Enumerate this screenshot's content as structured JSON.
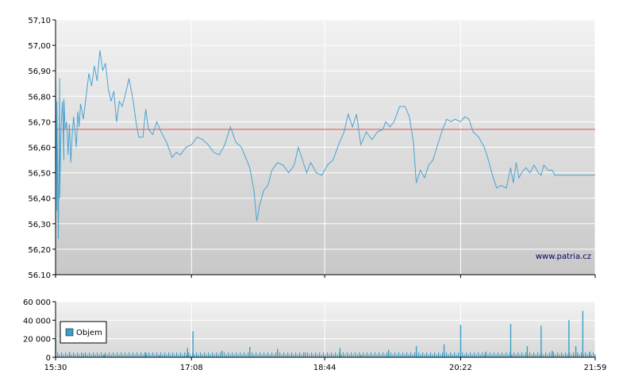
{
  "chart_data": [
    {
      "type": "line",
      "title": "",
      "xlabel": "",
      "ylabel": "",
      "ylim": [
        56.1,
        57.1
      ],
      "y_ticks": [
        "56.10",
        "56,20",
        "56,30",
        "56,40",
        "56,50",
        "56,60",
        "56,70",
        "56,80",
        "56,90",
        "57,00",
        "57,10"
      ],
      "x_ticks": [
        "15:30",
        "17:08",
        "18:44",
        "20:22",
        "21:59"
      ],
      "reference_line": 56.67,
      "watermark": "www.patria.cz",
      "colors": {
        "line": "#4aa3d1",
        "reference": "#e05050",
        "plot_top": "#f2f2f2",
        "plot_bottom": "#c8c8c8",
        "grid": "#ffffff"
      },
      "series": [
        {
          "points": [
            [
              "15:30",
              56.62
            ],
            [
              "15:30",
              56.88
            ],
            [
              "15:31",
              56.35
            ],
            [
              "15:31",
              56.78
            ],
            [
              "15:32",
              56.24
            ],
            [
              "15:33",
              56.87
            ],
            [
              "15:33",
              56.4
            ],
            [
              "15:34",
              56.68
            ],
            [
              "15:35",
              56.78
            ],
            [
              "15:36",
              56.55
            ],
            [
              "15:36",
              56.79
            ],
            [
              "15:37",
              56.67
            ],
            [
              "15:38",
              56.7
            ],
            [
              "15:39",
              56.57
            ],
            [
              "15:40",
              56.69
            ],
            [
              "15:41",
              56.54
            ],
            [
              "15:42",
              56.65
            ],
            [
              "15:43",
              56.72
            ],
            [
              "15:45",
              56.6
            ],
            [
              "15:46",
              56.74
            ],
            [
              "15:47",
              56.68
            ],
            [
              "15:48",
              56.77
            ],
            [
              "15:50",
              56.71
            ],
            [
              "15:52",
              56.8
            ],
            [
              "15:54",
              56.89
            ],
            [
              "15:56",
              56.84
            ],
            [
              "15:58",
              56.92
            ],
            [
              "16:00",
              56.86
            ],
            [
              "16:02",
              56.98
            ],
            [
              "16:04",
              56.9
            ],
            [
              "16:06",
              56.93
            ],
            [
              "16:08",
              56.83
            ],
            [
              "16:10",
              56.78
            ],
            [
              "16:12",
              56.82
            ],
            [
              "16:14",
              56.7
            ],
            [
              "16:16",
              56.78
            ],
            [
              "16:18",
              56.76
            ],
            [
              "16:20",
              56.8
            ],
            [
              "16:23",
              56.87
            ],
            [
              "16:26",
              56.78
            ],
            [
              "16:28",
              56.7
            ],
            [
              "16:30",
              56.64
            ],
            [
              "16:33",
              56.64
            ],
            [
              "16:35",
              56.75
            ],
            [
              "16:37",
              56.67
            ],
            [
              "16:40",
              56.65
            ],
            [
              "16:43",
              56.7
            ],
            [
              "16:46",
              56.66
            ],
            [
              "16:50",
              56.62
            ],
            [
              "16:52",
              56.59
            ],
            [
              "16:54",
              56.56
            ],
            [
              "16:57",
              56.58
            ],
            [
              "17:00",
              56.57
            ],
            [
              "17:04",
              56.6
            ],
            [
              "17:08",
              56.61
            ],
            [
              "17:12",
              56.64
            ],
            [
              "17:16",
              56.63
            ],
            [
              "17:20",
              56.61
            ],
            [
              "17:24",
              56.58
            ],
            [
              "17:28",
              56.57
            ],
            [
              "17:32",
              56.61
            ],
            [
              "17:36",
              56.68
            ],
            [
              "17:40",
              56.62
            ],
            [
              "17:44",
              56.6
            ],
            [
              "17:47",
              56.56
            ],
            [
              "17:50",
              56.52
            ],
            [
              "17:53",
              56.43
            ],
            [
              "17:55",
              56.31
            ],
            [
              "17:57",
              56.37
            ],
            [
              "18:00",
              56.43
            ],
            [
              "18:03",
              56.45
            ],
            [
              "18:06",
              56.51
            ],
            [
              "18:10",
              56.54
            ],
            [
              "18:14",
              56.53
            ],
            [
              "18:18",
              56.5
            ],
            [
              "18:22",
              56.53
            ],
            [
              "18:25",
              56.6
            ],
            [
              "18:28",
              56.55
            ],
            [
              "18:31",
              56.5
            ],
            [
              "18:34",
              56.54
            ],
            [
              "18:38",
              56.5
            ],
            [
              "18:42",
              56.49
            ],
            [
              "18:46",
              56.53
            ],
            [
              "18:50",
              56.55
            ],
            [
              "18:54",
              56.61
            ],
            [
              "18:58",
              56.66
            ],
            [
              "19:01",
              56.73
            ],
            [
              "19:04",
              56.68
            ],
            [
              "19:07",
              56.73
            ],
            [
              "19:10",
              56.61
            ],
            [
              "19:14",
              56.66
            ],
            [
              "19:18",
              56.63
            ],
            [
              "19:22",
              56.66
            ],
            [
              "19:26",
              56.67
            ],
            [
              "19:28",
              56.7
            ],
            [
              "19:31",
              56.68
            ],
            [
              "19:34",
              56.7
            ],
            [
              "19:38",
              56.76
            ],
            [
              "19:42",
              56.76
            ],
            [
              "19:45",
              56.72
            ],
            [
              "19:48",
              56.62
            ],
            [
              "19:50",
              56.46
            ],
            [
              "19:53",
              56.51
            ],
            [
              "19:56",
              56.48
            ],
            [
              "19:59",
              56.53
            ],
            [
              "20:02",
              56.55
            ],
            [
              "20:06",
              56.62
            ],
            [
              "20:09",
              56.67
            ],
            [
              "20:12",
              56.71
            ],
            [
              "20:15",
              56.7
            ],
            [
              "20:18",
              56.71
            ],
            [
              "20:22",
              56.7
            ],
            [
              "20:25",
              56.72
            ],
            [
              "20:28",
              56.71
            ],
            [
              "20:31",
              56.66
            ],
            [
              "20:35",
              56.64
            ],
            [
              "20:39",
              56.6
            ],
            [
              "20:42",
              56.55
            ],
            [
              "20:45",
              56.49
            ],
            [
              "20:48",
              56.44
            ],
            [
              "20:51",
              56.45
            ],
            [
              "20:55",
              56.44
            ],
            [
              "20:58",
              56.52
            ],
            [
              "21:00",
              56.46
            ],
            [
              "21:02",
              56.54
            ],
            [
              "21:04",
              56.48
            ],
            [
              "21:06",
              56.5
            ],
            [
              "21:09",
              56.52
            ],
            [
              "21:12",
              56.5
            ],
            [
              "21:15",
              56.53
            ],
            [
              "21:18",
              56.5
            ],
            [
              "21:20",
              56.49
            ],
            [
              "21:22",
              56.53
            ],
            [
              "21:25",
              56.51
            ],
            [
              "21:28",
              56.51
            ],
            [
              "21:30",
              56.49
            ],
            [
              "21:59",
              56.49
            ]
          ]
        }
      ]
    },
    {
      "type": "bar",
      "title": "",
      "xlabel": "",
      "ylabel": "",
      "ylim": [
        0,
        60000
      ],
      "y_ticks": [
        "0",
        "20 000",
        "40 000",
        "60 000"
      ],
      "x_ticks": [
        "15:30",
        "17:08",
        "18:44",
        "20:22",
        "21:59"
      ],
      "legend": {
        "label": "Objem",
        "placement": "left"
      },
      "colors": {
        "bar": "#3aa0c8"
      },
      "series": [
        {
          "name": "Objem",
          "points": [
            [
              "15:30",
              20000
            ],
            [
              "15:40",
              6000
            ],
            [
              "15:50",
              4000
            ],
            [
              "16:05",
              3000
            ],
            [
              "16:35",
              5000
            ],
            [
              "16:45",
              1500
            ],
            [
              "17:05",
              10000
            ],
            [
              "17:09",
              28000
            ],
            [
              "17:30",
              7000
            ],
            [
              "17:50",
              11000
            ],
            [
              "18:10",
              9000
            ],
            [
              "18:30",
              5000
            ],
            [
              "18:55",
              10000
            ],
            [
              "19:10",
              3000
            ],
            [
              "19:30",
              8000
            ],
            [
              "19:50",
              12000
            ],
            [
              "20:10",
              14000
            ],
            [
              "20:22",
              35000
            ],
            [
              "20:40",
              6000
            ],
            [
              "20:58",
              36000
            ],
            [
              "21:10",
              12000
            ],
            [
              "21:20",
              34000
            ],
            [
              "21:28",
              7000
            ],
            [
              "21:40",
              40000
            ],
            [
              "21:45",
              12000
            ],
            [
              "21:50",
              50000
            ],
            [
              "21:55",
              6000
            ]
          ]
        }
      ]
    }
  ]
}
